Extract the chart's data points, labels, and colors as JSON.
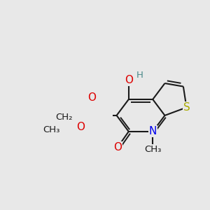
{
  "bg": "#e8e8e8",
  "bond_color": "#1a1a1a",
  "lw": 1.5,
  "lw_double_inner": 1.4,
  "colors": {
    "O": "#dd0000",
    "N": "#0000ee",
    "S": "#aaaa00",
    "H": "#4a8a8a",
    "C": "#1a1a1a"
  },
  "fs": 11,
  "fss": 9.5,
  "xlim": [
    -0.5,
    5.5
  ],
  "ylim": [
    -1.2,
    4.5
  ]
}
